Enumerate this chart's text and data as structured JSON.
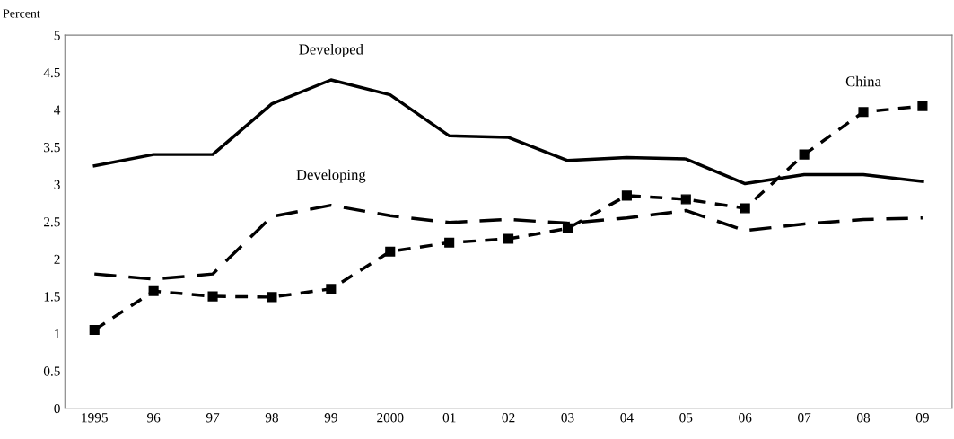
{
  "chart_data": {
    "type": "line",
    "ylabel": "Percent",
    "categories": [
      "1995",
      "96",
      "97",
      "98",
      "99",
      "2000",
      "01",
      "02",
      "03",
      "04",
      "05",
      "06",
      "07",
      "08",
      "09"
    ],
    "series": [
      {
        "color": "#000000",
        "line_style": "solid",
        "marker": "none",
        "values": [
          3.25,
          3.4,
          3.4,
          4.08,
          4.4,
          4.2,
          3.65,
          3.63,
          3.32,
          3.36,
          3.34,
          3.01,
          3.13,
          3.13,
          3.04
        ]
      },
      {
        "color": "#000000",
        "line_style": "dashed",
        "marker": "none",
        "values": [
          1.8,
          1.73,
          1.8,
          2.57,
          2.72,
          2.58,
          2.49,
          2.53,
          2.48,
          2.55,
          2.65,
          2.38,
          2.47,
          2.53,
          2.55
        ]
      },
      {
        "color": "#000000",
        "line_style": "dotted",
        "marker": "square",
        "values": [
          1.05,
          1.57,
          1.5,
          1.49,
          1.6,
          2.1,
          2.22,
          2.27,
          2.41,
          2.85,
          2.8,
          2.68,
          3.4,
          3.97,
          4.05
        ]
      }
    ],
    "annotations": [
      {
        "text": "Developed",
        "x": "99",
        "y": 4.4
      },
      {
        "text": "Developing",
        "x": "99",
        "y": 2.72
      },
      {
        "text": "China",
        "x": "08",
        "y": 3.97
      }
    ],
    "ylim": [
      0,
      5
    ],
    "yticks": [
      0,
      0.5,
      1,
      1.5,
      2,
      2.5,
      3,
      3.5,
      4,
      4.5,
      5
    ],
    "grid": false,
    "legend": false
  }
}
